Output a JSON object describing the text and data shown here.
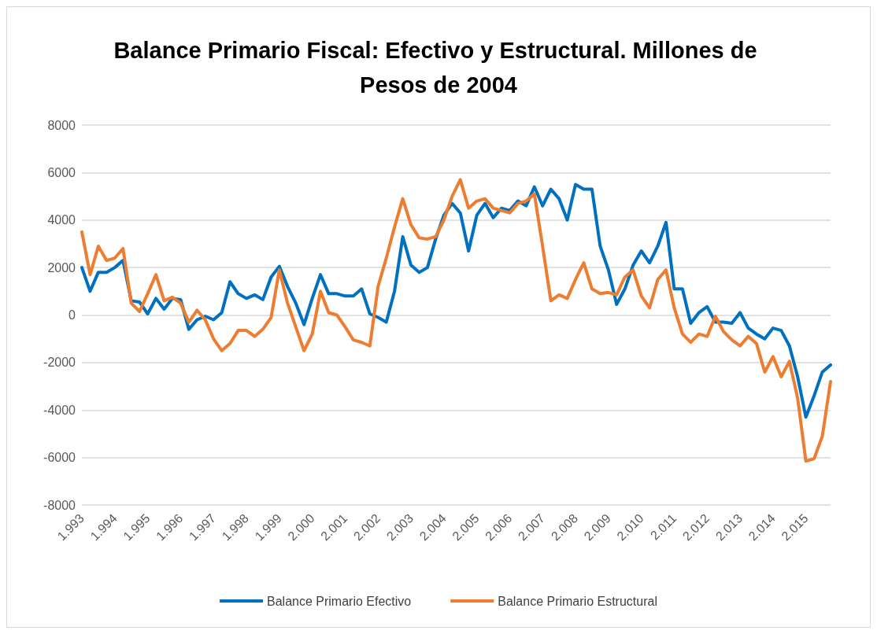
{
  "chart_data": {
    "type": "line",
    "title": "Balance Primario Fiscal: Efectivo y Estructural. Millones de Pesos de 2004",
    "categories": [
      "1.993",
      null,
      null,
      null,
      "1.994",
      null,
      null,
      null,
      "1.995",
      null,
      null,
      null,
      "1.996",
      null,
      null,
      null,
      "1.997",
      null,
      null,
      null,
      "1.998",
      null,
      null,
      null,
      "1.999",
      null,
      null,
      null,
      "2.000",
      null,
      null,
      null,
      "2.001",
      null,
      null,
      null,
      "2.002",
      null,
      null,
      null,
      "2.003",
      null,
      null,
      null,
      "2.004",
      null,
      null,
      null,
      "2.005",
      null,
      null,
      null,
      "2.006",
      null,
      null,
      null,
      "2.007",
      null,
      null,
      null,
      "2.008",
      null,
      null,
      null,
      "2.009",
      null,
      null,
      null,
      "2.010",
      null,
      null,
      null,
      "2.011",
      null,
      null,
      null,
      "2.012",
      null,
      null,
      null,
      "2.013",
      null,
      null,
      null,
      "2.014",
      null,
      null,
      null,
      "2.015",
      null,
      null,
      null
    ],
    "series": [
      {
        "name": "Balance Primario Efectivo",
        "color": "#0070c0",
        "values": [
          2000,
          1000,
          1800,
          1800,
          2000,
          2300,
          600,
          550,
          50,
          700,
          250,
          700,
          650,
          -600,
          -200,
          -50,
          -200,
          100,
          1400,
          900,
          700,
          850,
          650,
          1600,
          2050,
          1200,
          500,
          -400,
          700,
          1700,
          900,
          900,
          800,
          800,
          1100,
          50,
          -100,
          -300,
          1000,
          3300,
          2100,
          1800,
          2000,
          3200,
          4200,
          4700,
          4300,
          2700,
          4200,
          4700,
          4100,
          4500,
          4400,
          4800,
          4600,
          5400,
          4600,
          5300,
          4900,
          4000,
          5500,
          5300,
          5300,
          2900,
          1900,
          450,
          1100,
          2100,
          2700,
          2200,
          2900,
          3900,
          1100,
          1100,
          -350,
          100,
          350,
          -300,
          -300,
          -350,
          100,
          -550,
          -800,
          -1000,
          -550,
          -650,
          -1300,
          -2600,
          -4300,
          -3400,
          -2400,
          -2100
        ]
      },
      {
        "name": "Balance Primario Estructural",
        "color": "#ed7d31",
        "values": [
          3500,
          1700,
          2900,
          2300,
          2400,
          2800,
          500,
          150,
          900,
          1700,
          600,
          750,
          500,
          -300,
          200,
          -200,
          -1000,
          -1500,
          -1200,
          -650,
          -650,
          -900,
          -600,
          -100,
          1900,
          500,
          -500,
          -1500,
          -800,
          1000,
          100,
          0,
          -500,
          -1050,
          -1150,
          -1300,
          1200,
          2400,
          3700,
          4900,
          3800,
          3250,
          3200,
          3300,
          4000,
          5000,
          5700,
          4500,
          4800,
          4900,
          4500,
          4400,
          4300,
          4700,
          4800,
          5100,
          2900,
          600,
          850,
          700,
          1500,
          2200,
          1100,
          900,
          950,
          850,
          1600,
          1900,
          800,
          300,
          1500,
          1900,
          300,
          -800,
          -1150,
          -800,
          -900,
          -50,
          -700,
          -1050,
          -1300,
          -900,
          -1200,
          -2400,
          -1750,
          -2600,
          -1950,
          -3500,
          -6150,
          -6050,
          -5100,
          -2800
        ]
      }
    ],
    "ylim": [
      -8000,
      8000
    ],
    "yticks": [
      -8000,
      -6000,
      -4000,
      -2000,
      0,
      2000,
      4000,
      6000,
      8000
    ],
    "grid": "y",
    "legend": "bottom",
    "marker": "none",
    "line_style": "solid"
  }
}
